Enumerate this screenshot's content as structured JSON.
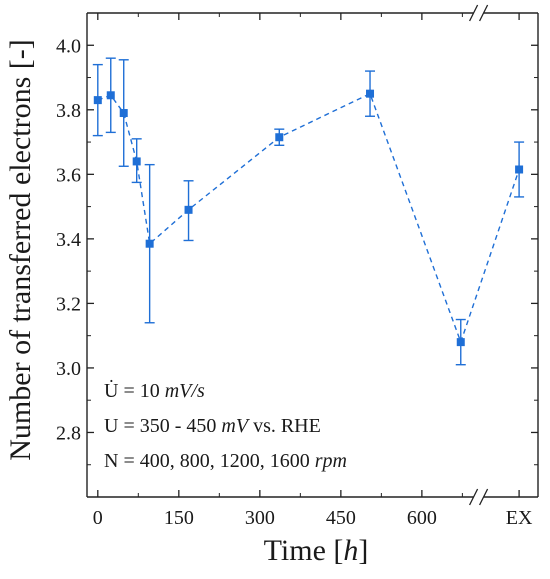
{
  "chart_data": {
    "type": "line",
    "xlabel": "Time [h]",
    "xlabel_parts": {
      "text": "Time [",
      "italic": "h",
      "end": "]"
    },
    "ylabel": "Number of transferred electrons [-]",
    "ylim": [
      2.6,
      4.1
    ],
    "yticks": [
      2.8,
      3.0,
      3.2,
      3.4,
      3.6,
      3.8,
      4.0
    ],
    "ytick_labels": [
      "2.8",
      "3.0",
      "3.2",
      "3.4",
      "3.6",
      "3.8",
      "4.0"
    ],
    "xlim": [
      -20,
      815
    ],
    "xticks": [
      0,
      150,
      300,
      450,
      600
    ],
    "xtick_labels": [
      "0",
      "150",
      "300",
      "450",
      "600"
    ],
    "x_break": {
      "after": 705,
      "category_label": "EX",
      "category_x": 780
    },
    "grid": false,
    "marker": "square",
    "line_style": "dashed",
    "color": "#1f6fd6",
    "series": [
      {
        "points": [
          {
            "x": 0,
            "y": 3.83,
            "err_low": 3.72,
            "err_high": 3.94
          },
          {
            "x": 24,
            "y": 3.845,
            "err_low": 3.73,
            "err_high": 3.96
          },
          {
            "x": 48,
            "y": 3.79,
            "err_low": 3.625,
            "err_high": 3.955
          },
          {
            "x": 72,
            "y": 3.64,
            "err_low": 3.575,
            "err_high": 3.71
          },
          {
            "x": 96,
            "y": 3.385,
            "err_low": 3.14,
            "err_high": 3.63
          },
          {
            "x": 168,
            "y": 3.49,
            "err_low": 3.395,
            "err_high": 3.58
          },
          {
            "x": 336,
            "y": 3.715,
            "err_low": 3.69,
            "err_high": 3.74
          },
          {
            "x": 504,
            "y": 3.85,
            "err_low": 3.78,
            "err_high": 3.92
          },
          {
            "x": 672,
            "y": 3.08,
            "err_low": 3.01,
            "err_high": 3.15
          },
          {
            "x": "EX",
            "y": 3.615,
            "err_low": 3.53,
            "err_high": 3.7
          }
        ]
      }
    ],
    "annotations": [
      {
        "prefix": "U̇ = 10 ",
        "italic": "mV/s",
        "suffix": ""
      },
      {
        "prefix": "U = 350 - 450 ",
        "italic": "mV",
        "suffix": " vs. RHE"
      },
      {
        "prefix": "N = 400, 800, 1200, 1600 ",
        "italic": "rpm",
        "suffix": ""
      }
    ]
  }
}
